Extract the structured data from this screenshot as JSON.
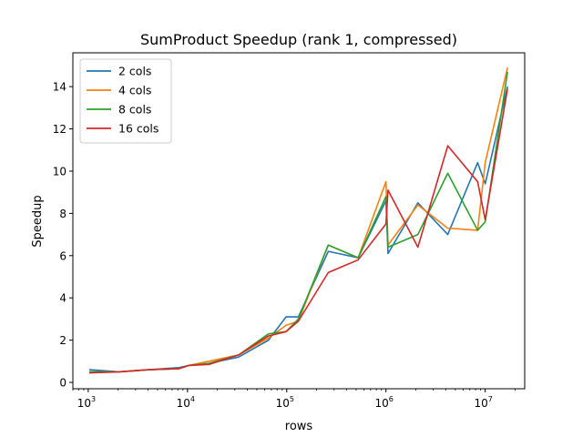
{
  "chart_data": {
    "type": "line",
    "title": "SumProduct Speedup (rank 1, compressed)",
    "xlabel": "rows",
    "ylabel": "Speedup",
    "xscale": "log",
    "xlim": [
      700,
      25000000
    ],
    "ylim": [
      -0.3,
      15.6
    ],
    "x_ticks": [
      {
        "value": 1000,
        "base": "10",
        "exp": "3"
      },
      {
        "value": 10000,
        "base": "10",
        "exp": "4"
      },
      {
        "value": 100000,
        "base": "10",
        "exp": "5"
      },
      {
        "value": 1000000,
        "base": "10",
        "exp": "6"
      },
      {
        "value": 10000000,
        "base": "10",
        "exp": "7"
      }
    ],
    "y_ticks": [
      {
        "value": 0,
        "label": "0"
      },
      {
        "value": 2,
        "label": "2"
      },
      {
        "value": 4,
        "label": "4"
      },
      {
        "value": 6,
        "label": "6"
      },
      {
        "value": 8,
        "label": "8"
      },
      {
        "value": 10,
        "label": "10"
      },
      {
        "value": 12,
        "label": "12"
      },
      {
        "value": 14,
        "label": "14"
      }
    ],
    "grid": false,
    "legend_position": "top-left",
    "x": [
      1024,
      2048,
      4096,
      8192,
      10240,
      16384,
      32768,
      65536,
      98304,
      131072,
      262144,
      524288,
      1000000,
      1048576,
      2097152,
      4194304,
      8388608,
      10000000,
      16777216
    ],
    "series": [
      {
        "name": "2 cols",
        "color": "#1f77b4",
        "values": [
          0.6,
          0.5,
          0.6,
          0.7,
          0.8,
          0.9,
          1.2,
          2.0,
          3.1,
          3.1,
          6.2,
          5.9,
          8.6,
          6.1,
          8.5,
          7.0,
          10.4,
          9.4,
          14.0
        ]
      },
      {
        "name": "4 cols",
        "color": "#ff7f0e",
        "values": [
          0.5,
          0.5,
          0.6,
          0.65,
          0.8,
          1.0,
          1.3,
          2.1,
          2.7,
          2.9,
          6.5,
          5.9,
          9.5,
          6.5,
          8.4,
          7.3,
          7.2,
          10.4,
          14.9
        ]
      },
      {
        "name": "8 cols",
        "color": "#2ca02c",
        "values": [
          0.5,
          0.5,
          0.6,
          0.65,
          0.8,
          0.9,
          1.3,
          2.3,
          2.4,
          3.0,
          6.5,
          5.9,
          8.8,
          6.4,
          7.0,
          9.9,
          7.2,
          7.6,
          14.7
        ]
      },
      {
        "name": "16 cols",
        "color": "#d62728",
        "values": [
          0.45,
          0.5,
          0.6,
          0.65,
          0.8,
          0.85,
          1.3,
          2.2,
          2.4,
          2.9,
          5.2,
          5.8,
          7.5,
          9.1,
          6.4,
          11.2,
          9.5,
          7.7,
          13.9
        ]
      }
    ]
  }
}
